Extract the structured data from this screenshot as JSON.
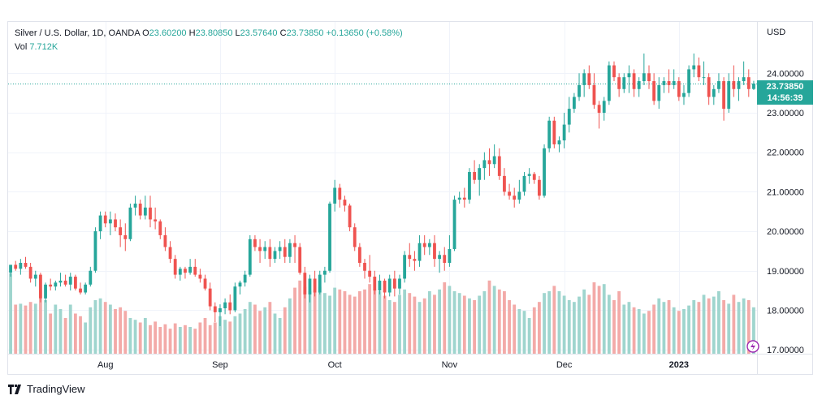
{
  "header": {
    "symbol": "Silver / U.S. Dollar, 1D, OANDA",
    "open_label": "O",
    "open": "23.60200",
    "high_label": "H",
    "high": "23.80850",
    "low_label": "L",
    "low": "23.57640",
    "close_label": "C",
    "close": "23.73850",
    "change": "+0.13650 (+0.58%)",
    "vol_label": "Vol",
    "vol": "7.712K"
  },
  "currency": "USD",
  "price_tag": {
    "price": "23.73850",
    "countdown": "14:56:39"
  },
  "footer": {
    "brand": "TradingView"
  },
  "colors": {
    "up": "#26a69a",
    "down": "#ef5350",
    "up_vol": "#9fd5ce",
    "down_vol": "#f3aaa8",
    "grid": "#f0f3fa"
  },
  "chart_data": {
    "type": "candlestick",
    "title": "Silver / U.S. Dollar, 1D, OANDA",
    "y_ticks": [
      "17.00000",
      "18.00000",
      "19.00000",
      "20.00000",
      "21.00000",
      "22.00000",
      "23.00000",
      "24.00000"
    ],
    "ylim": [
      16.9,
      25.3
    ],
    "x_ticks": [
      "Aug",
      "Sep",
      "Oct",
      "Nov",
      "Dec",
      "2023"
    ],
    "x_tick_index": [
      19,
      42,
      65,
      88,
      111,
      134
    ],
    "last_price": 23.7385,
    "candles": [
      [
        18.95,
        19.15,
        18.85,
        19.15
      ],
      [
        19.15,
        19.25,
        19.0,
        19.05
      ],
      [
        19.05,
        19.3,
        18.9,
        19.2
      ],
      [
        19.2,
        19.35,
        19.05,
        19.1
      ],
      [
        19.1,
        19.2,
        18.7,
        18.8
      ],
      [
        18.8,
        19.0,
        18.6,
        18.9
      ],
      [
        18.9,
        18.95,
        18.2,
        18.3
      ],
      [
        18.3,
        18.7,
        18.2,
        18.65
      ],
      [
        18.65,
        18.8,
        18.5,
        18.6
      ],
      [
        18.6,
        18.75,
        18.5,
        18.7
      ],
      [
        18.7,
        18.95,
        18.6,
        18.75
      ],
      [
        18.75,
        18.9,
        18.6,
        18.65
      ],
      [
        18.65,
        18.95,
        18.5,
        18.85
      ],
      [
        18.85,
        18.9,
        18.5,
        18.55
      ],
      [
        18.55,
        18.7,
        18.4,
        18.45
      ],
      [
        18.45,
        18.7,
        18.4,
        18.65
      ],
      [
        18.65,
        19.1,
        18.6,
        19.0
      ],
      [
        19.0,
        20.1,
        18.95,
        20.0
      ],
      [
        20.0,
        20.5,
        19.8,
        20.4
      ],
      [
        20.4,
        20.5,
        20.1,
        20.2
      ],
      [
        20.2,
        20.5,
        19.9,
        20.3
      ],
      [
        20.3,
        20.45,
        20.0,
        20.1
      ],
      [
        20.1,
        20.3,
        19.6,
        19.9
      ],
      [
        19.9,
        20.2,
        19.5,
        19.8
      ],
      [
        19.8,
        20.7,
        19.75,
        20.6
      ],
      [
        20.6,
        20.9,
        20.4,
        20.7
      ],
      [
        20.7,
        20.8,
        20.3,
        20.4
      ],
      [
        20.4,
        20.9,
        20.3,
        20.6
      ],
      [
        20.6,
        20.9,
        20.1,
        20.3
      ],
      [
        20.3,
        20.6,
        20.05,
        20.25
      ],
      [
        20.25,
        20.3,
        19.8,
        19.9
      ],
      [
        19.9,
        20.1,
        19.5,
        19.6
      ],
      [
        19.6,
        19.75,
        19.2,
        19.3
      ],
      [
        19.3,
        19.4,
        18.8,
        18.9
      ],
      [
        18.9,
        19.1,
        18.75,
        19.05
      ],
      [
        19.05,
        19.1,
        18.8,
        18.95
      ],
      [
        18.95,
        19.3,
        18.9,
        19.1
      ],
      [
        19.1,
        19.3,
        18.85,
        18.9
      ],
      [
        18.9,
        19.05,
        18.7,
        18.8
      ],
      [
        18.8,
        18.9,
        18.5,
        18.55
      ],
      [
        18.55,
        18.7,
        18.0,
        18.1
      ],
      [
        18.1,
        18.2,
        17.7,
        17.95
      ],
      [
        17.95,
        18.15,
        17.6,
        18.05
      ],
      [
        18.05,
        18.3,
        17.9,
        18.2
      ],
      [
        18.2,
        18.4,
        17.9,
        18.0
      ],
      [
        18.0,
        18.7,
        17.95,
        18.6
      ],
      [
        18.6,
        18.75,
        18.4,
        18.7
      ],
      [
        18.7,
        19.0,
        18.6,
        18.9
      ],
      [
        18.9,
        19.9,
        18.85,
        19.8
      ],
      [
        19.8,
        19.9,
        19.5,
        19.6
      ],
      [
        19.6,
        19.8,
        19.2,
        19.5
      ],
      [
        19.5,
        19.75,
        19.3,
        19.6
      ],
      [
        19.6,
        19.8,
        19.1,
        19.3
      ],
      [
        19.3,
        19.6,
        19.2,
        19.5
      ],
      [
        19.5,
        19.75,
        19.3,
        19.6
      ],
      [
        19.6,
        19.8,
        19.2,
        19.35
      ],
      [
        19.35,
        19.8,
        19.2,
        19.7
      ],
      [
        19.7,
        19.9,
        19.2,
        19.6
      ],
      [
        19.6,
        19.7,
        18.9,
        18.95
      ],
      [
        18.95,
        19.1,
        18.3,
        18.4
      ],
      [
        18.4,
        18.9,
        18.2,
        18.8
      ],
      [
        18.8,
        19.0,
        18.35,
        18.45
      ],
      [
        18.45,
        19.0,
        18.4,
        18.9
      ],
      [
        18.9,
        19.1,
        18.7,
        19.0
      ],
      [
        19.0,
        20.75,
        18.95,
        20.7
      ],
      [
        20.7,
        21.3,
        20.5,
        21.1
      ],
      [
        21.1,
        21.2,
        20.6,
        20.8
      ],
      [
        20.8,
        20.9,
        20.5,
        20.65
      ],
      [
        20.65,
        20.7,
        20.0,
        20.1
      ],
      [
        20.1,
        20.2,
        19.5,
        19.6
      ],
      [
        19.6,
        19.7,
        19.1,
        19.2
      ],
      [
        19.2,
        19.3,
        18.8,
        19.0
      ],
      [
        19.0,
        19.4,
        18.7,
        18.85
      ],
      [
        18.85,
        19.0,
        18.4,
        18.5
      ],
      [
        18.5,
        18.9,
        18.4,
        18.75
      ],
      [
        18.75,
        18.8,
        18.3,
        18.45
      ],
      [
        18.45,
        18.9,
        18.35,
        18.8
      ],
      [
        18.8,
        19.0,
        18.35,
        18.55
      ],
      [
        18.55,
        18.9,
        18.4,
        18.8
      ],
      [
        18.8,
        19.5,
        18.7,
        19.4
      ],
      [
        19.4,
        19.7,
        19.1,
        19.3
      ],
      [
        19.3,
        19.5,
        19.0,
        19.25
      ],
      [
        19.25,
        19.9,
        19.1,
        19.7
      ],
      [
        19.7,
        19.9,
        19.4,
        19.6
      ],
      [
        19.6,
        19.8,
        19.4,
        19.7
      ],
      [
        19.7,
        19.9,
        19.1,
        19.3
      ],
      [
        19.3,
        19.5,
        18.95,
        19.4
      ],
      [
        19.4,
        19.6,
        19.0,
        19.2
      ],
      [
        19.2,
        19.9,
        19.1,
        19.55
      ],
      [
        19.55,
        20.9,
        19.5,
        20.8
      ],
      [
        20.8,
        21.0,
        20.7,
        20.85
      ],
      [
        20.85,
        21.1,
        20.6,
        20.8
      ],
      [
        20.8,
        21.6,
        20.7,
        21.5
      ],
      [
        21.5,
        21.8,
        21.2,
        21.3
      ],
      [
        21.3,
        21.7,
        20.9,
        21.6
      ],
      [
        21.6,
        22.0,
        21.3,
        21.8
      ],
      [
        21.8,
        22.1,
        21.4,
        21.7
      ],
      [
        21.7,
        22.2,
        21.6,
        21.9
      ],
      [
        21.9,
        22.1,
        21.3,
        21.4
      ],
      [
        21.4,
        21.6,
        20.9,
        21.0
      ],
      [
        21.0,
        21.2,
        20.8,
        20.9
      ],
      [
        20.9,
        21.1,
        20.6,
        20.8
      ],
      [
        20.8,
        21.3,
        20.7,
        21.0
      ],
      [
        21.0,
        21.5,
        20.9,
        21.4
      ],
      [
        21.4,
        21.6,
        21.2,
        21.45
      ],
      [
        21.45,
        21.5,
        21.2,
        21.3
      ],
      [
        21.3,
        21.4,
        20.8,
        20.9
      ],
      [
        20.9,
        22.2,
        20.85,
        22.1
      ],
      [
        22.1,
        22.9,
        22.0,
        22.8
      ],
      [
        22.8,
        22.9,
        22.1,
        22.2
      ],
      [
        22.2,
        22.4,
        22.0,
        22.3
      ],
      [
        22.3,
        23.0,
        22.1,
        22.7
      ],
      [
        22.7,
        23.4,
        22.5,
        23.1
      ],
      [
        23.1,
        23.5,
        23.0,
        23.4
      ],
      [
        23.4,
        24.0,
        23.3,
        23.7
      ],
      [
        23.7,
        24.1,
        23.4,
        24.0
      ],
      [
        24.0,
        24.2,
        23.6,
        23.7
      ],
      [
        23.7,
        24.0,
        23.1,
        23.2
      ],
      [
        23.2,
        23.3,
        22.6,
        23.0
      ],
      [
        23.0,
        23.4,
        22.8,
        23.3
      ],
      [
        23.3,
        24.3,
        23.2,
        24.2
      ],
      [
        24.2,
        24.3,
        23.8,
        23.9
      ],
      [
        23.9,
        24.0,
        23.4,
        23.6
      ],
      [
        23.6,
        24.0,
        23.5,
        23.9
      ],
      [
        23.9,
        24.2,
        23.5,
        24.0
      ],
      [
        24.0,
        24.1,
        23.4,
        23.6
      ],
      [
        23.6,
        23.9,
        23.4,
        23.8
      ],
      [
        23.8,
        24.5,
        23.7,
        24.0
      ],
      [
        24.0,
        24.2,
        23.6,
        23.8
      ],
      [
        23.8,
        24.0,
        23.2,
        23.3
      ],
      [
        23.3,
        23.9,
        23.1,
        23.7
      ],
      [
        23.7,
        23.9,
        23.5,
        23.8
      ],
      [
        23.8,
        24.1,
        23.5,
        23.7
      ],
      [
        23.7,
        24.1,
        23.6,
        23.8
      ],
      [
        23.8,
        23.9,
        23.3,
        23.4
      ],
      [
        23.4,
        23.7,
        23.2,
        23.5
      ],
      [
        23.5,
        24.2,
        23.4,
        24.1
      ],
      [
        24.1,
        24.5,
        23.9,
        24.2
      ],
      [
        24.2,
        24.4,
        23.8,
        23.9
      ],
      [
        23.9,
        24.3,
        23.7,
        23.9
      ],
      [
        23.9,
        24.0,
        23.2,
        23.4
      ],
      [
        23.4,
        23.7,
        23.2,
        23.6
      ],
      [
        23.6,
        24.0,
        23.5,
        23.8
      ],
      [
        23.8,
        23.9,
        22.8,
        23.1
      ],
      [
        23.1,
        24.0,
        23.0,
        23.8
      ],
      [
        23.8,
        24.2,
        23.4,
        23.6
      ],
      [
        23.6,
        23.9,
        23.3,
        23.8
      ],
      [
        23.8,
        24.3,
        23.7,
        23.9
      ],
      [
        23.9,
        24.1,
        23.4,
        23.6
      ],
      [
        23.602,
        23.8085,
        23.5764,
        23.7385
      ]
    ],
    "volumes": [
      0.9,
      0.55,
      0.56,
      0.54,
      0.58,
      0.56,
      0.62,
      0.6,
      0.45,
      0.55,
      0.5,
      0.4,
      0.55,
      0.45,
      0.42,
      0.35,
      0.52,
      0.6,
      0.62,
      0.58,
      0.55,
      0.5,
      0.52,
      0.48,
      0.4,
      0.38,
      0.35,
      0.4,
      0.32,
      0.36,
      0.3,
      0.33,
      0.28,
      0.34,
      0.3,
      0.32,
      0.3,
      0.28,
      0.35,
      0.4,
      0.32,
      0.35,
      0.42,
      0.38,
      0.36,
      0.42,
      0.45,
      0.5,
      0.58,
      0.55,
      0.48,
      0.52,
      0.58,
      0.45,
      0.4,
      0.52,
      0.62,
      0.74,
      0.82,
      0.75,
      0.7,
      0.72,
      0.75,
      0.68,
      0.65,
      0.74,
      0.72,
      0.7,
      0.66,
      0.64,
      0.7,
      0.72,
      0.78,
      0.72,
      0.7,
      0.65,
      0.6,
      0.58,
      0.66,
      0.72,
      0.68,
      0.64,
      0.58,
      0.62,
      0.7,
      0.66,
      0.72,
      0.8,
      0.76,
      0.7,
      0.68,
      0.65,
      0.62,
      0.6,
      0.65,
      0.7,
      0.82,
      0.76,
      0.72,
      0.7,
      0.6,
      0.55,
      0.5,
      0.48,
      0.4,
      0.52,
      0.58,
      0.68,
      0.7,
      0.76,
      0.7,
      0.65,
      0.6,
      0.58,
      0.64,
      0.72,
      0.66,
      0.8,
      0.76,
      0.78,
      0.66,
      0.6,
      0.7,
      0.55,
      0.58,
      0.52,
      0.5,
      0.45,
      0.48,
      0.55,
      0.62,
      0.58,
      0.6,
      0.52,
      0.48,
      0.5,
      0.54,
      0.6,
      0.58,
      0.66,
      0.62,
      0.64,
      0.7,
      0.6,
      0.56,
      0.66,
      0.58,
      0.62,
      0.6,
      0.52
    ]
  }
}
